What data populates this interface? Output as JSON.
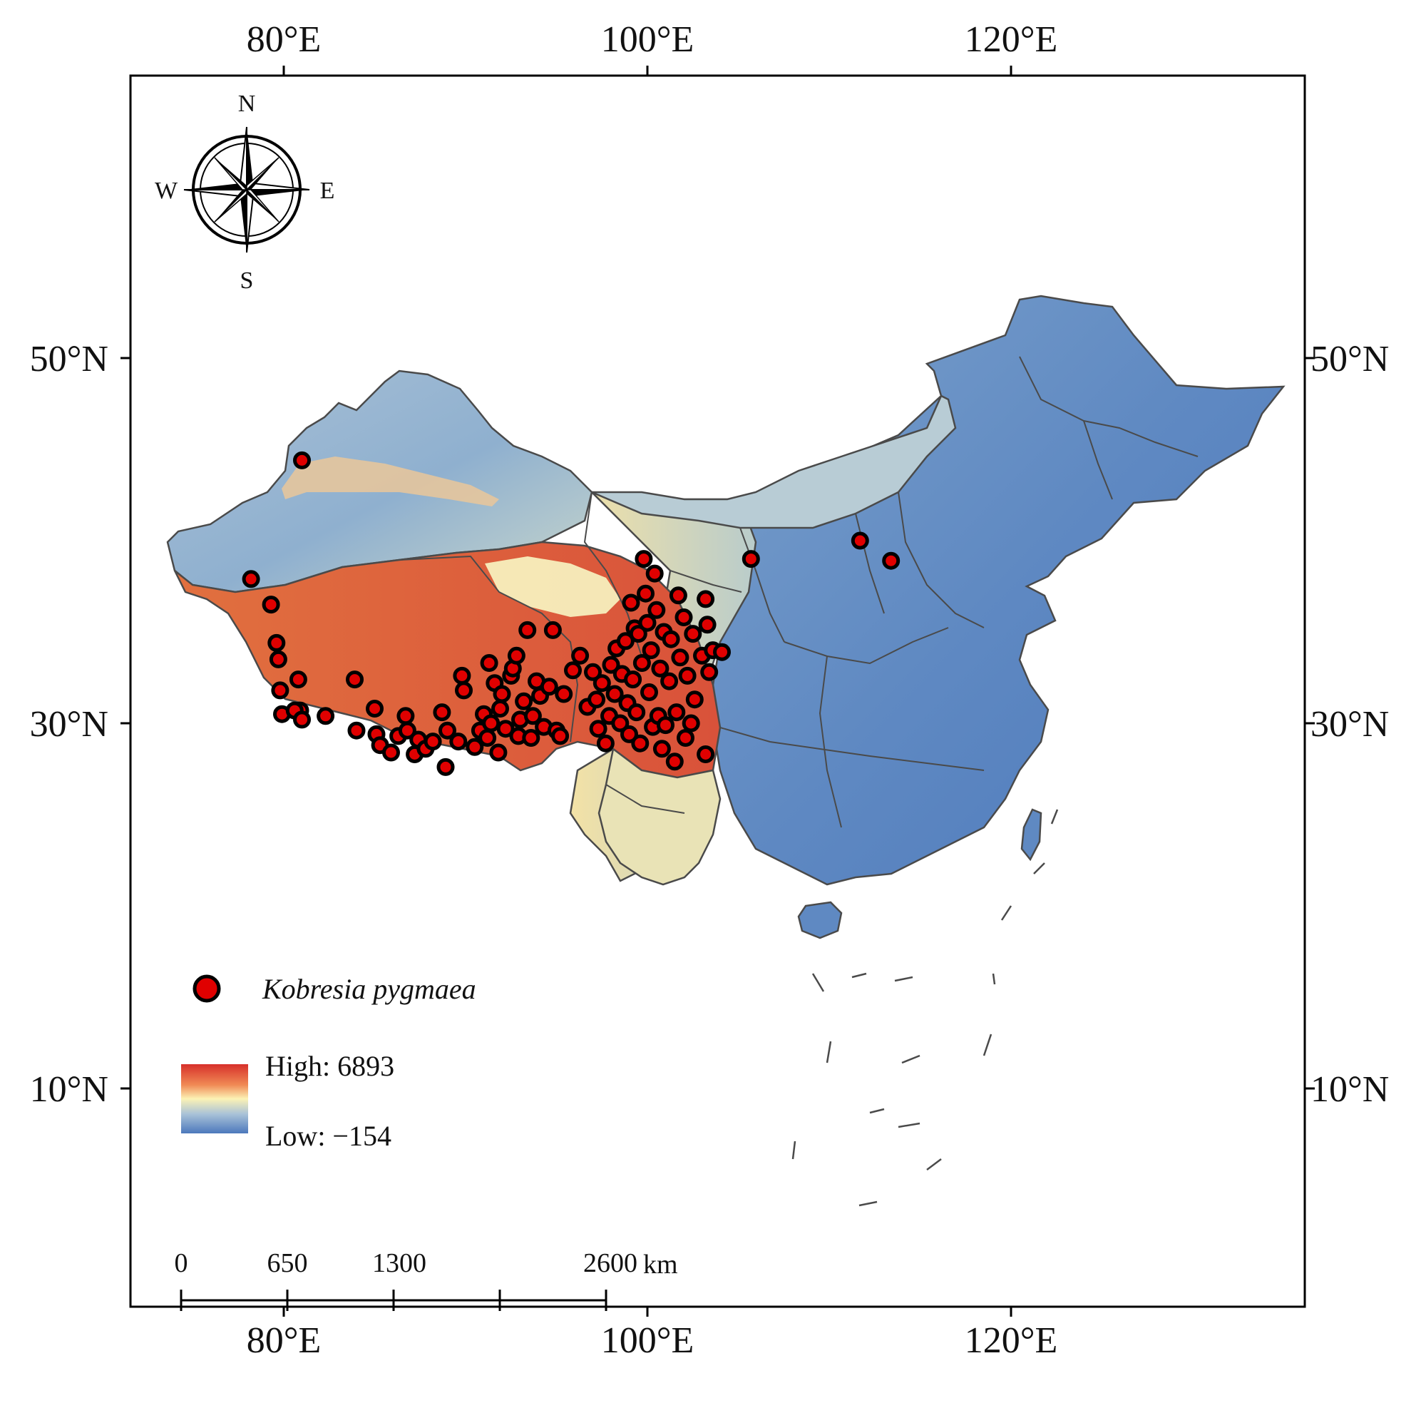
{
  "map": {
    "frame": {
      "lon_min": 71.7,
      "lon_max": 136.2,
      "lat_min": 2.5,
      "lat_max": 66.0
    },
    "lon_ticks": [
      {
        "value": 80,
        "label": "80°E"
      },
      {
        "value": 100,
        "label": "100°E"
      },
      {
        "value": 120,
        "label": "120°E"
      }
    ],
    "lat_ticks": [
      {
        "value": 50,
        "label": "50°N"
      },
      {
        "value": 30,
        "label": "30°N"
      },
      {
        "value": 10,
        "label": "10°N"
      }
    ],
    "compass": {
      "n": "N",
      "s": "S",
      "e": "E",
      "w": "W"
    },
    "legend": {
      "species_label": "Kobresia pygmaea",
      "high_label": "High: 6893",
      "low_label": "Low: −154",
      "gradient_colors": [
        "#d7302a",
        "#f08a55",
        "#fcf2b5",
        "#a9c2d8",
        "#4c78bc"
      ]
    },
    "scale_bar": {
      "labels": [
        "0",
        "650",
        "1300",
        "2600"
      ],
      "unit": "km"
    },
    "colors": {
      "high": "#d6402f",
      "mid_high": "#f5a874",
      "mid": "#f7efbd",
      "mid_low": "#8fb0cf",
      "low": "#5a85c0",
      "border": "#4a4a4a",
      "point_fill": "#e00000",
      "point_stroke": "#000000"
    },
    "occurrence_points": [
      [
        81.0,
        44.4
      ],
      [
        78.2,
        37.9
      ],
      [
        79.3,
        36.5
      ],
      [
        79.6,
        34.4
      ],
      [
        79.7,
        33.5
      ],
      [
        79.8,
        31.8
      ],
      [
        80.8,
        32.4
      ],
      [
        80.9,
        30.7
      ],
      [
        79.9,
        30.5
      ],
      [
        80.6,
        30.7
      ],
      [
        81.0,
        30.2
      ],
      [
        82.3,
        30.4
      ],
      [
        83.9,
        32.4
      ],
      [
        84.0,
        29.6
      ],
      [
        85.0,
        30.8
      ],
      [
        85.1,
        29.4
      ],
      [
        85.3,
        28.8
      ],
      [
        85.9,
        28.4
      ],
      [
        86.3,
        29.3
      ],
      [
        86.7,
        30.4
      ],
      [
        86.8,
        29.6
      ],
      [
        87.2,
        28.3
      ],
      [
        87.4,
        29.1
      ],
      [
        87.8,
        28.6
      ],
      [
        88.2,
        29.0
      ],
      [
        88.7,
        30.6
      ],
      [
        88.9,
        27.6
      ],
      [
        89.0,
        29.6
      ],
      [
        89.6,
        29.0
      ],
      [
        89.9,
        31.8
      ],
      [
        89.8,
        32.6
      ],
      [
        90.5,
        28.7
      ],
      [
        90.8,
        29.6
      ],
      [
        91.0,
        30.5
      ],
      [
        91.2,
        29.2
      ],
      [
        91.4,
        30.0
      ],
      [
        91.3,
        33.3
      ],
      [
        91.6,
        32.2
      ],
      [
        91.8,
        28.4
      ],
      [
        91.9,
        30.8
      ],
      [
        92.0,
        31.6
      ],
      [
        92.2,
        29.7
      ],
      [
        92.5,
        32.6
      ],
      [
        92.6,
        33.0
      ],
      [
        92.8,
        33.7
      ],
      [
        92.9,
        29.3
      ],
      [
        93.0,
        30.2
      ],
      [
        93.2,
        31.2
      ],
      [
        93.4,
        35.1
      ],
      [
        93.6,
        29.2
      ],
      [
        93.7,
        30.4
      ],
      [
        93.9,
        32.3
      ],
      [
        94.1,
        31.5
      ],
      [
        94.3,
        29.8
      ],
      [
        94.6,
        32.0
      ],
      [
        94.8,
        35.1
      ],
      [
        95.0,
        29.6
      ],
      [
        95.2,
        29.3
      ],
      [
        95.4,
        31.6
      ],
      [
        95.9,
        32.9
      ],
      [
        96.3,
        33.7
      ],
      [
        96.7,
        30.9
      ],
      [
        97.0,
        32.8
      ],
      [
        97.2,
        31.3
      ],
      [
        97.3,
        29.7
      ],
      [
        97.5,
        32.2
      ],
      [
        97.7,
        28.9
      ],
      [
        97.9,
        30.4
      ],
      [
        98.0,
        33.2
      ],
      [
        98.2,
        31.6
      ],
      [
        98.3,
        34.1
      ],
      [
        98.5,
        30.0
      ],
      [
        98.6,
        32.7
      ],
      [
        98.8,
        34.5
      ],
      [
        98.9,
        31.1
      ],
      [
        99.0,
        29.4
      ],
      [
        99.1,
        36.6
      ],
      [
        99.2,
        32.4
      ],
      [
        99.3,
        35.2
      ],
      [
        99.4,
        30.6
      ],
      [
        99.5,
        34.9
      ],
      [
        99.6,
        28.9
      ],
      [
        99.7,
        33.3
      ],
      [
        99.8,
        39.0
      ],
      [
        99.9,
        37.1
      ],
      [
        100.0,
        35.5
      ],
      [
        100.1,
        31.7
      ],
      [
        100.2,
        34.0
      ],
      [
        100.3,
        29.8
      ],
      [
        100.4,
        38.2
      ],
      [
        100.5,
        36.2
      ],
      [
        100.6,
        30.4
      ],
      [
        100.7,
        33.0
      ],
      [
        100.8,
        28.6
      ],
      [
        100.9,
        35.0
      ],
      [
        101.0,
        29.9
      ],
      [
        101.2,
        32.3
      ],
      [
        101.3,
        34.6
      ],
      [
        101.5,
        27.9
      ],
      [
        101.6,
        30.6
      ],
      [
        101.7,
        37.0
      ],
      [
        101.8,
        33.6
      ],
      [
        102.0,
        35.8
      ],
      [
        102.1,
        29.2
      ],
      [
        102.2,
        32.6
      ],
      [
        102.4,
        30.0
      ],
      [
        102.5,
        34.9
      ],
      [
        102.6,
        31.3
      ],
      [
        103.0,
        33.7
      ],
      [
        103.2,
        28.3
      ],
      [
        103.3,
        35.4
      ],
      [
        103.4,
        32.8
      ],
      [
        103.6,
        34.0
      ],
      [
        104.1,
        33.9
      ],
      [
        103.2,
        36.8
      ],
      [
        105.7,
        39.0
      ],
      [
        111.7,
        40.0
      ],
      [
        113.4,
        38.9
      ]
    ]
  }
}
